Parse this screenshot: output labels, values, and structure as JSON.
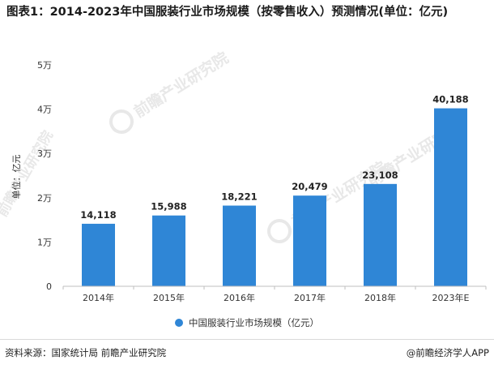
{
  "title": "图表1：2014-2023年中国服装行业市场规模（按零售收入）预测情况(单位：亿元)",
  "watermark": "前瞻产业研究院",
  "source": "资料来源：国家统计局 前瞻产业研究院",
  "credit": "@前瞻经济学人APP",
  "colors": {
    "bar": "#2f86d6",
    "axis": "#bfbfbf",
    "text": "#333333"
  },
  "chart_data": {
    "type": "bar",
    "categories": [
      "2014年",
      "2015年",
      "2016年",
      "2017年",
      "2018年",
      "2023年E"
    ],
    "series": [
      {
        "name": "中国服装行业市场规模（亿元）",
        "values": [
          14118,
          15988,
          18221,
          20479,
          23108,
          40188
        ]
      }
    ],
    "data_labels": [
      "14,118",
      "15,988",
      "18,221",
      "20,479",
      "23,108",
      "40,188"
    ],
    "ylabel": "单位：亿元",
    "ylim": [
      0,
      50000
    ],
    "yticks": [
      0,
      10000,
      20000,
      30000,
      40000,
      50000
    ],
    "ytick_labels": [
      "0",
      "1万",
      "2万",
      "3万",
      "4万",
      "5万"
    ],
    "grid": false,
    "legend": "bottom-center"
  }
}
